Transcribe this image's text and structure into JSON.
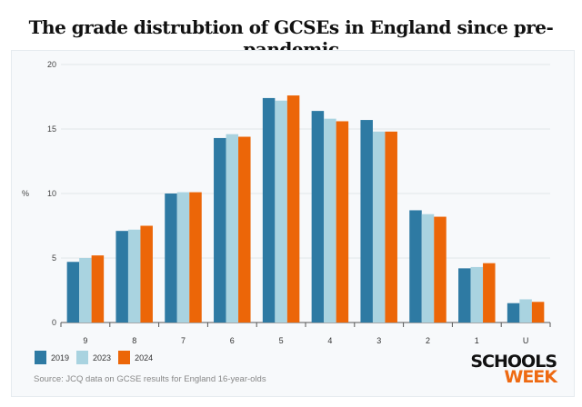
{
  "chart_data": {
    "type": "bar",
    "title": "The grade distrubtion of GCSEs in England since pre-pandemic",
    "xlabel": "",
    "ylabel": "%",
    "ylim": [
      0,
      20
    ],
    "yticks": [
      0,
      5,
      10,
      15,
      20
    ],
    "grid": true,
    "legend": "bottom-left",
    "categories": [
      "9",
      "8",
      "7",
      "6",
      "5",
      "4",
      "3",
      "2",
      "1",
      "U"
    ],
    "series": [
      {
        "name": "2019",
        "color": "#2e7aa3",
        "values": [
          4.7,
          7.1,
          10.0,
          14.3,
          17.4,
          16.4,
          15.7,
          8.7,
          4.2,
          1.5
        ]
      },
      {
        "name": "2023",
        "color": "#a9d3e0",
        "values": [
          5.0,
          7.2,
          10.1,
          14.6,
          17.2,
          15.8,
          14.8,
          8.4,
          4.3,
          1.8
        ]
      },
      {
        "name": "2024",
        "color": "#ec6608",
        "values": [
          5.2,
          7.5,
          10.1,
          14.4,
          17.6,
          15.6,
          14.8,
          8.2,
          4.6,
          1.6
        ]
      }
    ],
    "source": "Source: JCQ data on GCSE results for England 16-year-olds"
  },
  "logo": {
    "line1": "SCHOOLS",
    "line2": "WEEK"
  }
}
